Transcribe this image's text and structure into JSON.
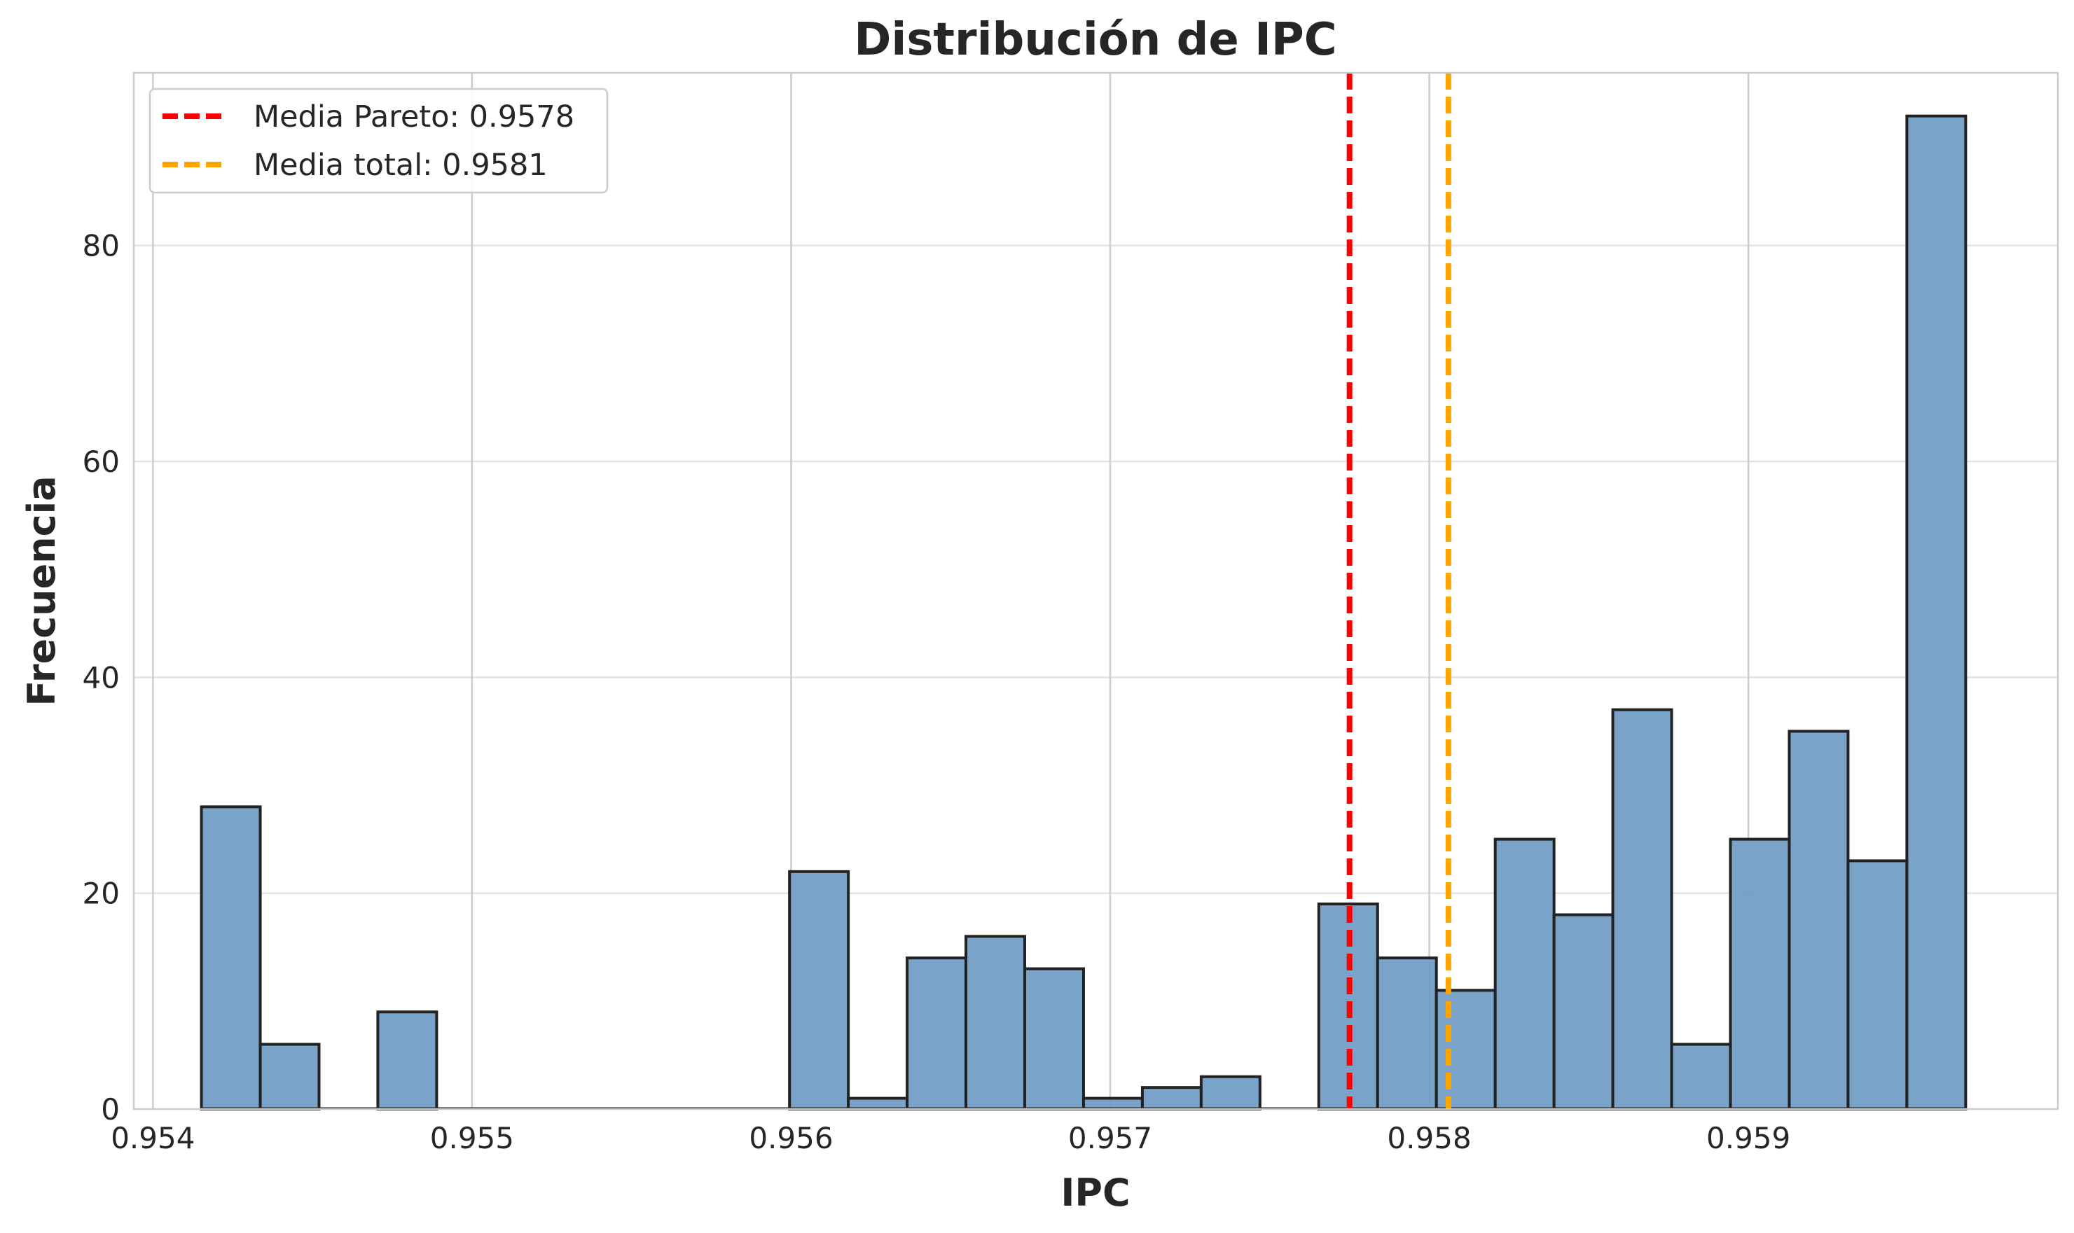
{
  "chart_data": {
    "type": "bar",
    "title": "Distribución de IPC",
    "xlabel": "IPC",
    "ylabel": "Frecuencia",
    "xlim": [
      0.95394,
      0.95997
    ],
    "ylim": [
      0,
      96
    ],
    "xticks": [
      0.954,
      0.955,
      0.956,
      0.957,
      0.958,
      0.959
    ],
    "xtick_labels": [
      "0.954",
      "0.955",
      "0.956",
      "0.957",
      "0.958",
      "0.959"
    ],
    "yticks": [
      0,
      20,
      40,
      60,
      80
    ],
    "ytick_labels": [
      "0",
      "20",
      "40",
      "60",
      "80"
    ],
    "grid": true,
    "legend_position": "top-left",
    "bar_color": "#6f9bc6",
    "bar_edge_color": "#222222",
    "bins": {
      "start": 0.954152,
      "width": 0.0001843,
      "counts": [
        28,
        6,
        0,
        9,
        0,
        0,
        0,
        0,
        0,
        0,
        22,
        1,
        14,
        16,
        13,
        1,
        2,
        3,
        0,
        19,
        14,
        11,
        25,
        18,
        37,
        6,
        25,
        35,
        23,
        92
      ]
    },
    "lines": [
      {
        "label": "Media Pareto: 0.9578",
        "value": 0.95775,
        "color": "#ff0000"
      },
      {
        "label": "Media total: 0.9581",
        "value": 0.95806,
        "color": "#ffa500"
      }
    ]
  }
}
